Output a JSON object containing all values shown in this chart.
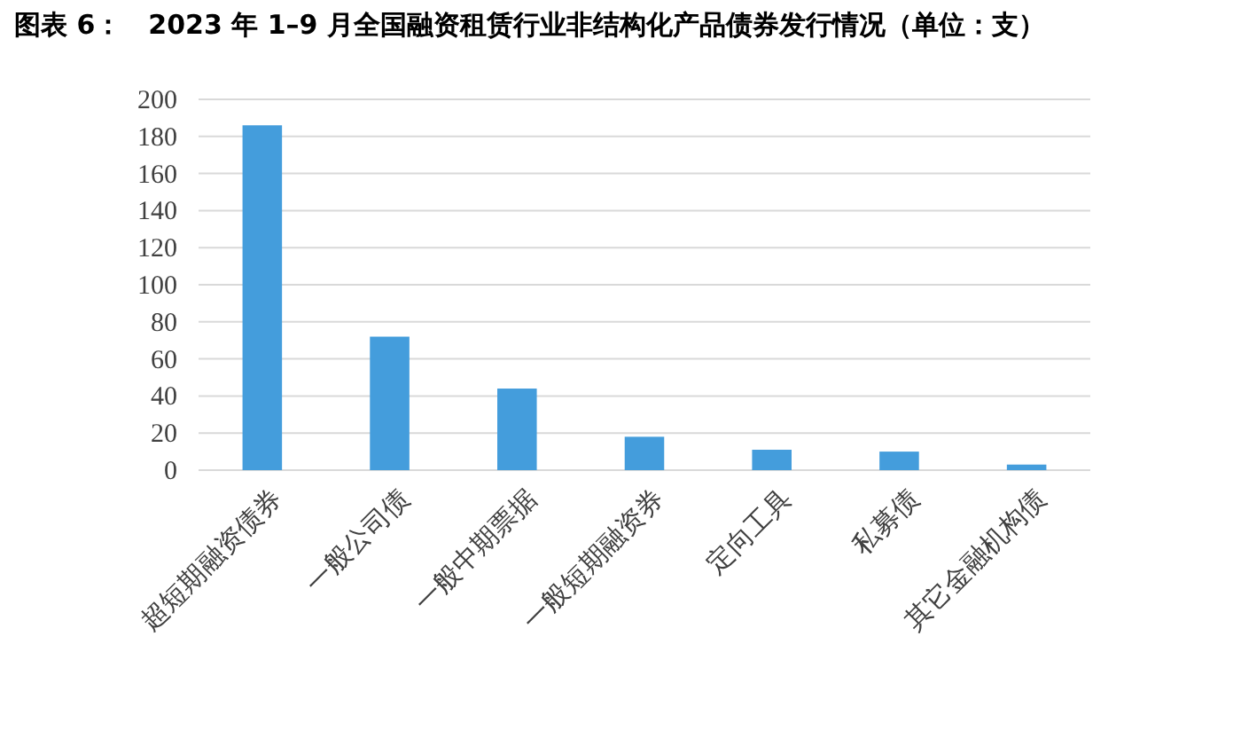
{
  "chart_data": {
    "type": "bar",
    "title": "图表 6：　2023 年 1–9 月全国融资租赁行业非结构化产品债券发行情况（单位：支）",
    "categories": [
      "超短期融资债券",
      "一般公司债",
      "一般中期票据",
      "一般短期融资券",
      "定向工具",
      "私募债",
      "其它金融机构债"
    ],
    "values": [
      186,
      72,
      44,
      18,
      11,
      10,
      3
    ],
    "color": "#449ddc",
    "ylim": [
      0,
      200
    ],
    "yticks": [
      0,
      20,
      40,
      60,
      80,
      100,
      120,
      140,
      160,
      180,
      200
    ],
    "grid": "y"
  }
}
